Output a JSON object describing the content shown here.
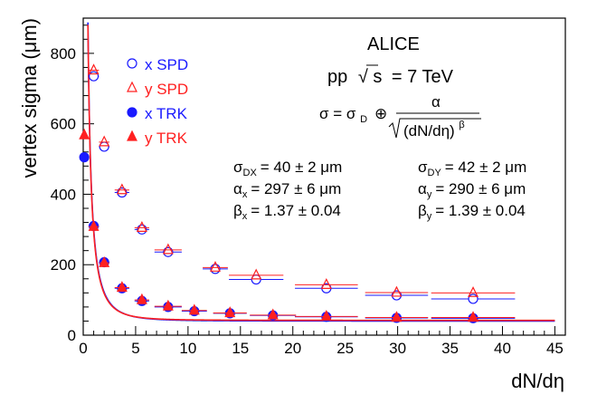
{
  "chart_data": {
    "type": "scatter",
    "xlabel": "dN/dη",
    "ylabel": "vertex sigma (μm)",
    "xlim": [
      0,
      46
    ],
    "ylim": [
      0,
      900
    ],
    "x_ticks": [
      0,
      5,
      10,
      15,
      20,
      25,
      30,
      35,
      40,
      45
    ],
    "y_ticks": [
      0,
      200,
      400,
      600,
      800
    ],
    "legend_position": "top-left",
    "series": [
      {
        "name": "x SPD",
        "color": "#1a1aff",
        "marker": "open-circle",
        "points": [
          {
            "x": 1.0,
            "y": 735,
            "xerr": 0.5
          },
          {
            "x": 2.0,
            "y": 535,
            "xerr": 0.5
          },
          {
            "x": 3.7,
            "y": 405,
            "xerr": 0.7
          },
          {
            "x": 5.6,
            "y": 300,
            "xerr": 0.7
          },
          {
            "x": 8.1,
            "y": 236,
            "xerr": 1.3
          },
          {
            "x": 12.6,
            "y": 188,
            "xerr": 1.2
          },
          {
            "x": 16.5,
            "y": 158,
            "xerr": 2.6
          },
          {
            "x": 23.2,
            "y": 133,
            "xerr": 3.0
          },
          {
            "x": 29.9,
            "y": 113,
            "xerr": 3.0
          },
          {
            "x": 37.2,
            "y": 103,
            "xerr": 4.0
          }
        ]
      },
      {
        "name": "y SPD",
        "color": "#ff2020",
        "marker": "open-triangle",
        "points": [
          {
            "x": 1.0,
            "y": 752,
            "xerr": 0.5
          },
          {
            "x": 2.0,
            "y": 548,
            "xerr": 0.5
          },
          {
            "x": 3.7,
            "y": 412,
            "xerr": 0.7
          },
          {
            "x": 5.6,
            "y": 305,
            "xerr": 0.7
          },
          {
            "x": 8.1,
            "y": 242,
            "xerr": 1.3
          },
          {
            "x": 12.6,
            "y": 192,
            "xerr": 1.2
          },
          {
            "x": 16.5,
            "y": 170,
            "xerr": 2.6
          },
          {
            "x": 23.2,
            "y": 143,
            "xerr": 3.0
          },
          {
            "x": 29.9,
            "y": 121,
            "xerr": 3.0
          },
          {
            "x": 37.2,
            "y": 120,
            "xerr": 4.0
          }
        ]
      },
      {
        "name": "x TRK",
        "color": "#1a1aff",
        "marker": "filled-circle",
        "points": [
          {
            "x": 0.1,
            "y": 505,
            "xerr": 0
          },
          {
            "x": 1.0,
            "y": 310,
            "xerr": 0.5
          },
          {
            "x": 2.0,
            "y": 207,
            "xerr": 0.5
          },
          {
            "x": 3.7,
            "y": 133,
            "xerr": 0.7
          },
          {
            "x": 5.6,
            "y": 97,
            "xerr": 0.7
          },
          {
            "x": 8.1,
            "y": 80,
            "xerr": 1.3
          },
          {
            "x": 10.6,
            "y": 68,
            "xerr": 1.2
          },
          {
            "x": 14.0,
            "y": 62,
            "xerr": 1.6
          },
          {
            "x": 18.1,
            "y": 56,
            "xerr": 2.2
          },
          {
            "x": 23.2,
            "y": 52,
            "xerr": 3.0
          },
          {
            "x": 29.9,
            "y": 49,
            "xerr": 3.0
          },
          {
            "x": 37.2,
            "y": 48,
            "xerr": 4.0
          }
        ]
      },
      {
        "name": "y TRK",
        "color": "#ff2020",
        "marker": "filled-triangle",
        "points": [
          {
            "x": 0.1,
            "y": 568,
            "xerr": 0
          },
          {
            "x": 1.0,
            "y": 308,
            "xerr": 0.5
          },
          {
            "x": 2.0,
            "y": 205,
            "xerr": 0.5
          },
          {
            "x": 3.7,
            "y": 135,
            "xerr": 0.7
          },
          {
            "x": 5.6,
            "y": 100,
            "xerr": 0.7
          },
          {
            "x": 8.1,
            "y": 82,
            "xerr": 1.3
          },
          {
            "x": 10.6,
            "y": 70,
            "xerr": 1.2
          },
          {
            "x": 14.0,
            "y": 63,
            "xerr": 1.6
          },
          {
            "x": 18.1,
            "y": 57,
            "xerr": 2.2
          },
          {
            "x": 23.2,
            "y": 53,
            "xerr": 3.0
          },
          {
            "x": 29.9,
            "y": 50,
            "xerr": 3.0
          },
          {
            "x": 37.2,
            "y": 50,
            "xerr": 4.0
          }
        ]
      }
    ],
    "fits": [
      {
        "color": "#1a1aff",
        "sigma_d": 40,
        "alpha": 297,
        "beta": 1.37
      },
      {
        "color": "#ff2020",
        "sigma_d": 42,
        "alpha": 290,
        "beta": 1.39
      }
    ]
  },
  "annotations": {
    "experiment": "ALICE",
    "energy": {
      "pp": "pp",
      "sqrt": "√",
      "s": "s",
      "rest": "= 7 TeV"
    },
    "formula": {
      "lhs": "σ = σ",
      "lhs_sub": "D",
      "oplus": "⊕",
      "numerator": "α",
      "denominator": "(dN/dη)",
      "denominator_sup": "β"
    },
    "fit_x": {
      "sigma": {
        "sym": "σ",
        "sub": "DX",
        "val": "= 40 ± 2 μm"
      },
      "alpha": {
        "sym": "α",
        "sub": "x",
        "val": "= 297 ± 6 μm"
      },
      "beta": {
        "sym": "β",
        "sub": "x",
        "val": "= 1.37 ± 0.04"
      }
    },
    "fit_y": {
      "sigma": {
        "sym": "σ",
        "sub": "DY",
        "val": "= 42 ± 2 μm"
      },
      "alpha": {
        "sym": "α",
        "sub": "y",
        "val": "= 290 ± 6 μm"
      },
      "beta": {
        "sym": "β",
        "sub": "y",
        "val": "= 1.39 ± 0.04"
      }
    }
  }
}
